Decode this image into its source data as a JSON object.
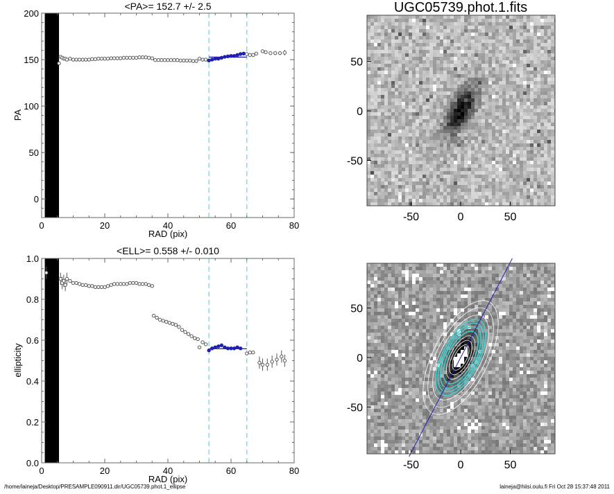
{
  "footer": {
    "left": "/home/laineja/Desktop/PRESAMPLE090911.dir/UGC05739.phot.1_ellipse",
    "right": "laineja@hiisi.oulu.fi  Fri Oct 28 15:37:48 2011"
  },
  "colors": {
    "fit": "#2020b0",
    "limits": "#5ee0e8",
    "contour_cyan": "#40d0d0",
    "points": "#555555"
  },
  "chart_data": [
    {
      "type": "scatter",
      "title": "<PA>= 152.7 +/-   2.5",
      "xlabel": "RAD (pix)",
      "ylabel": "PA",
      "xlim": [
        0,
        80
      ],
      "ylim": [
        -20,
        200
      ],
      "xticks": [
        "0",
        "20",
        "40",
        "60",
        "80"
      ],
      "yticks": [
        "0",
        "50",
        "100",
        "150",
        "200"
      ],
      "ytick_values": [
        0,
        50,
        100,
        150,
        200
      ],
      "inner_band": [
        1,
        5.5
      ],
      "fit_range": [
        53,
        65
      ],
      "fit_value": 152.7,
      "points": [
        [
          5.5,
          146
        ],
        [
          6,
          153
        ],
        [
          6.5,
          152
        ],
        [
          7,
          151
        ],
        [
          7.5,
          151
        ],
        [
          8,
          150
        ],
        [
          9,
          151
        ],
        [
          10,
          150
        ],
        [
          11,
          150
        ],
        [
          12,
          150
        ],
        [
          13,
          150
        ],
        [
          14,
          150
        ],
        [
          15,
          150
        ],
        [
          16,
          150.5
        ],
        [
          17,
          150.5
        ],
        [
          18,
          151
        ],
        [
          19,
          151
        ],
        [
          20,
          151
        ],
        [
          21,
          151
        ],
        [
          22,
          151.5
        ],
        [
          23,
          151.5
        ],
        [
          24,
          151.5
        ],
        [
          25,
          151.5
        ],
        [
          26,
          152
        ],
        [
          27,
          152
        ],
        [
          28,
          152
        ],
        [
          29,
          152
        ],
        [
          30,
          152
        ],
        [
          31,
          152.5
        ],
        [
          32,
          152.5
        ],
        [
          33,
          152.5
        ],
        [
          34,
          152
        ],
        [
          35,
          151.5
        ],
        [
          36,
          149.5
        ],
        [
          37,
          149.5
        ],
        [
          38,
          149.5
        ],
        [
          39,
          149.5
        ],
        [
          40,
          149.5
        ],
        [
          41,
          149.5
        ],
        [
          42,
          149.5
        ],
        [
          43,
          149.5
        ],
        [
          44,
          149
        ],
        [
          45,
          149
        ],
        [
          46,
          149
        ],
        [
          47,
          149
        ],
        [
          48,
          148.5
        ],
        [
          49,
          148.5
        ],
        [
          50,
          151
        ],
        [
          51,
          150
        ],
        [
          52,
          150
        ],
        [
          53,
          149
        ],
        [
          54,
          150
        ],
        [
          55,
          151
        ],
        [
          56,
          151
        ],
        [
          57,
          152
        ],
        [
          58,
          153
        ],
        [
          59,
          153.5
        ],
        [
          60,
          154
        ],
        [
          61,
          154
        ],
        [
          62,
          155
        ],
        [
          63,
          156
        ],
        [
          64,
          156.5
        ],
        [
          65,
          156
        ],
        [
          66,
          155
        ],
        [
          67,
          155
        ],
        [
          68,
          156.5
        ],
        [
          70,
          159
        ],
        [
          71,
          158
        ],
        [
          72.5,
          157
        ],
        [
          74,
          157
        ],
        [
          75.5,
          157
        ],
        [
          77,
          157.5
        ]
      ]
    },
    {
      "type": "scatter",
      "title": "<ELL>= 0.558 +/-  0.010",
      "xlabel": "RAD (pix)",
      "ylabel": "ellipticity",
      "xlim": [
        0,
        80
      ],
      "ylim": [
        0,
        1
      ],
      "xticks": [
        "0",
        "20",
        "40",
        "60",
        "80"
      ],
      "yticks": [
        "0.0",
        "0.2",
        "0.4",
        "0.6",
        "0.8",
        "1.0"
      ],
      "ytick_values": [
        0,
        0.2,
        0.4,
        0.6,
        0.8,
        1.0
      ],
      "inner_band": [
        1,
        5.5
      ],
      "fit_range": [
        53,
        65
      ],
      "fit_value": 0.558,
      "points": [
        [
          1.5,
          0.93
        ],
        [
          6,
          0.9
        ],
        [
          6.5,
          0.88
        ],
        [
          7,
          0.89
        ],
        [
          7.5,
          0.87
        ],
        [
          8,
          0.9
        ],
        [
          9,
          0.89
        ],
        [
          10,
          0.88
        ],
        [
          11,
          0.88
        ],
        [
          12,
          0.875
        ],
        [
          13,
          0.87
        ],
        [
          14,
          0.87
        ],
        [
          15,
          0.865
        ],
        [
          16,
          0.865
        ],
        [
          17,
          0.86
        ],
        [
          18,
          0.86
        ],
        [
          19,
          0.86
        ],
        [
          20,
          0.86
        ],
        [
          21,
          0.865
        ],
        [
          22,
          0.87
        ],
        [
          23,
          0.875
        ],
        [
          24,
          0.875
        ],
        [
          25,
          0.875
        ],
        [
          26,
          0.875
        ],
        [
          27,
          0.875
        ],
        [
          28,
          0.88
        ],
        [
          29,
          0.88
        ],
        [
          30,
          0.88
        ],
        [
          31,
          0.875
        ],
        [
          32,
          0.875
        ],
        [
          33,
          0.875
        ],
        [
          34,
          0.87
        ],
        [
          35,
          0.865
        ],
        [
          35.5,
          0.72
        ],
        [
          36.5,
          0.71
        ],
        [
          37.5,
          0.7
        ],
        [
          38.5,
          0.695
        ],
        [
          39.5,
          0.69
        ],
        [
          40.5,
          0.685
        ],
        [
          41.5,
          0.68
        ],
        [
          42.5,
          0.675
        ],
        [
          43.5,
          0.665
        ],
        [
          44.5,
          0.65
        ],
        [
          45.5,
          0.64
        ],
        [
          46.5,
          0.63
        ],
        [
          47.5,
          0.62
        ],
        [
          48.5,
          0.61
        ],
        [
          49.5,
          0.605
        ],
        [
          50,
          0.565
        ],
        [
          51,
          0.59
        ],
        [
          52,
          0.58
        ],
        [
          53,
          0.55
        ],
        [
          54,
          0.56
        ],
        [
          55,
          0.565
        ],
        [
          56,
          0.57
        ],
        [
          57,
          0.575
        ],
        [
          58,
          0.565
        ],
        [
          59,
          0.56
        ],
        [
          60,
          0.56
        ],
        [
          61,
          0.56
        ],
        [
          62,
          0.565
        ],
        [
          63,
          0.56
        ],
        [
          65,
          0.535
        ],
        [
          66,
          0.54
        ],
        [
          67,
          0.54
        ],
        [
          69,
          0.49
        ],
        [
          70,
          0.48
        ],
        [
          71.5,
          0.48
        ],
        [
          73,
          0.495
        ],
        [
          74.5,
          0.505
        ],
        [
          76,
          0.52
        ],
        [
          77,
          0.5
        ]
      ]
    }
  ],
  "images": [
    {
      "title": "UGC05739.phot.1.fits",
      "ticks": [
        "-50",
        "0",
        "50"
      ],
      "tick_values": [
        -50,
        0,
        50
      ]
    },
    {
      "title": "",
      "ticks": [
        "-50",
        "0",
        "50"
      ],
      "tick_values": [
        -50,
        0,
        50
      ]
    }
  ]
}
